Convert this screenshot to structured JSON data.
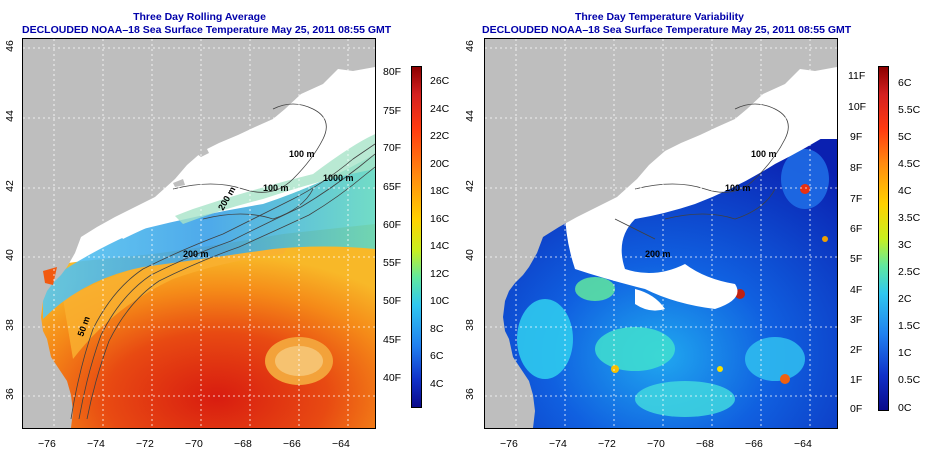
{
  "panels": [
    {
      "title": "Three Day Rolling Average",
      "subtitle": "DECLOUDED NOAA–18 Sea Surface Temperature May 25, 2011 08:55 GMT",
      "colorbar": {
        "left_labels": [
          "80F",
          "75F",
          "70F",
          "65F",
          "60F",
          "55F",
          "50F",
          "45F",
          "40F"
        ],
        "right_labels": [
          "26C",
          "24C",
          "22C",
          "20C",
          "18C",
          "16C",
          "14C",
          "12C",
          "10C",
          "8C",
          "6C",
          "4C"
        ]
      },
      "contour_labels": [
        "100 m",
        "100 m",
        "1000 m",
        "200 m",
        "200 m",
        "50 m"
      ]
    },
    {
      "title": "Three Day Temperature Variability",
      "subtitle": "DECLOUDED NOAA–18 Sea Surface Temperature May 25, 2011 08:55 GMT",
      "colorbar": {
        "left_labels": [
          "11F",
          "10F",
          "9F",
          "8F",
          "7F",
          "6F",
          "5F",
          "4F",
          "3F",
          "2F",
          "1F",
          "0F"
        ],
        "right_labels": [
          "6C",
          "5.5C",
          "5C",
          "4.5C",
          "4C",
          "3.5C",
          "3C",
          "2.5C",
          "2C",
          "1.5C",
          "1C",
          "0.5C",
          "0C"
        ]
      },
      "contour_labels": [
        "100 m",
        "100 m",
        "200 m"
      ]
    }
  ],
  "axes": {
    "x_ticks": [
      "−76",
      "−74",
      "−72",
      "−70",
      "−68",
      "−66",
      "−64"
    ],
    "y_ticks": [
      "46",
      "44",
      "42",
      "40",
      "38",
      "36"
    ]
  },
  "colors": {
    "land": "#bebebe",
    "cloud": "#ffffff",
    "title": "#0000aa",
    "grid": "#ffffff",
    "contour": "#404040"
  }
}
